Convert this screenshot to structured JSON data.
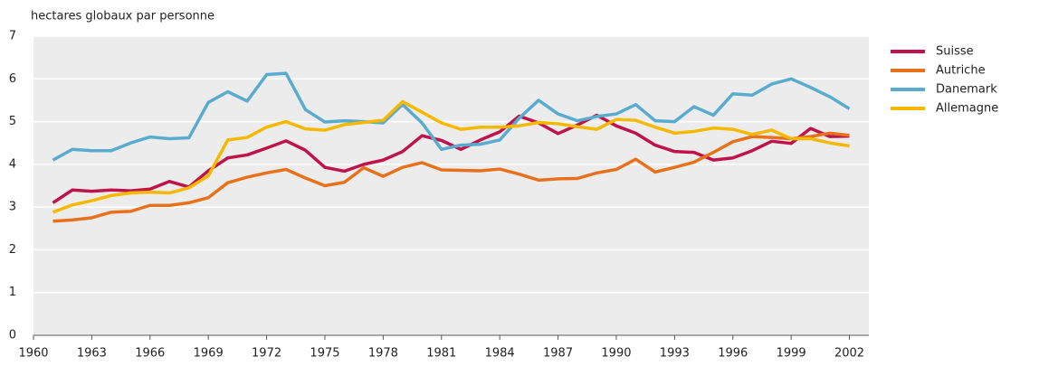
{
  "chart_data": {
    "type": "line",
    "y_label": "hectares globaux par personne",
    "x": [
      1961,
      1962,
      1963,
      1964,
      1965,
      1966,
      1967,
      1968,
      1969,
      1970,
      1971,
      1972,
      1973,
      1974,
      1975,
      1976,
      1977,
      1978,
      1979,
      1980,
      1981,
      1982,
      1983,
      1984,
      1985,
      1986,
      1987,
      1988,
      1989,
      1990,
      1991,
      1992,
      1993,
      1994,
      1995,
      1996,
      1997,
      1998,
      1999,
      2000,
      2001,
      2002
    ],
    "series": [
      {
        "name": "Suisse",
        "color": "#c0134c",
        "values": [
          3.1,
          3.4,
          3.37,
          3.4,
          3.38,
          3.42,
          3.6,
          3.47,
          3.85,
          4.15,
          4.22,
          4.38,
          4.55,
          4.33,
          3.93,
          3.84,
          4.0,
          4.1,
          4.3,
          4.67,
          4.56,
          4.35,
          4.57,
          4.76,
          5.13,
          4.97,
          4.72,
          4.92,
          5.15,
          4.9,
          4.73,
          4.45,
          4.3,
          4.28,
          4.1,
          4.15,
          4.32,
          4.54,
          4.49,
          4.84,
          4.65,
          4.66
        ]
      },
      {
        "name": "Autriche",
        "color": "#e8721c",
        "values": [
          2.67,
          2.7,
          2.75,
          2.88,
          2.9,
          3.04,
          3.04,
          3.1,
          3.22,
          3.57,
          3.7,
          3.8,
          3.88,
          3.68,
          3.5,
          3.58,
          3.92,
          3.72,
          3.93,
          4.04,
          3.87,
          3.86,
          3.85,
          3.89,
          3.77,
          3.63,
          3.66,
          3.67,
          3.8,
          3.88,
          4.12,
          3.82,
          3.93,
          4.05,
          4.28,
          4.53,
          4.65,
          4.63,
          4.6,
          4.65,
          4.73,
          4.68
        ]
      },
      {
        "name": "Danemark",
        "color": "#5aaccf",
        "values": [
          4.1,
          4.35,
          4.32,
          4.32,
          4.5,
          4.64,
          4.6,
          4.62,
          5.45,
          5.7,
          5.48,
          6.1,
          6.13,
          5.28,
          4.99,
          5.02,
          5.0,
          4.97,
          5.4,
          4.97,
          4.35,
          4.45,
          4.47,
          4.57,
          5.08,
          5.5,
          5.18,
          5.02,
          5.12,
          5.18,
          5.4,
          5.02,
          5.0,
          5.35,
          5.15,
          5.65,
          5.62,
          5.88,
          6.0,
          5.8,
          5.58,
          5.3
        ]
      },
      {
        "name": "Allemagne",
        "color": "#f6b800",
        "values": [
          2.88,
          3.05,
          3.15,
          3.27,
          3.33,
          3.35,
          3.33,
          3.45,
          3.73,
          4.57,
          4.63,
          4.87,
          5.0,
          4.83,
          4.8,
          4.93,
          4.98,
          5.03,
          5.47,
          5.22,
          4.97,
          4.82,
          4.87,
          4.87,
          4.9,
          4.98,
          4.95,
          4.88,
          4.82,
          5.05,
          5.03,
          4.87,
          4.73,
          4.77,
          4.85,
          4.82,
          4.7,
          4.8,
          4.6,
          4.6,
          4.5,
          4.43
        ]
      }
    ],
    "xlim": [
      1960,
      2003
    ],
    "xticks": [
      1960,
      1963,
      1966,
      1969,
      1972,
      1975,
      1978,
      1981,
      1984,
      1987,
      1990,
      1993,
      1996,
      1999,
      2002
    ],
    "ylim": [
      0,
      7
    ],
    "yticks": [
      0,
      1,
      2,
      3,
      4,
      5,
      6,
      7
    ],
    "grid": true,
    "legend": "right"
  }
}
